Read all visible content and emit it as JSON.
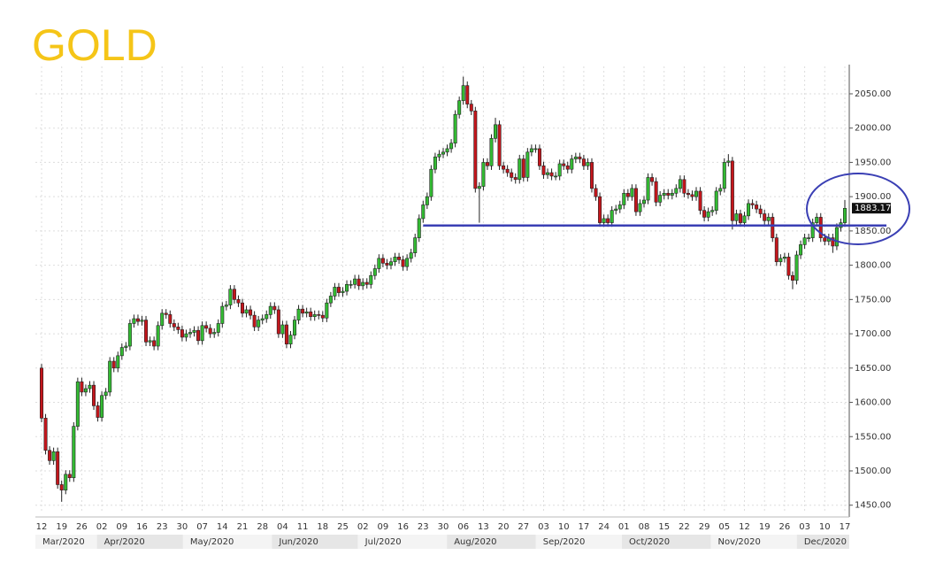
{
  "chart_data": {
    "type": "candlestick",
    "title": "GOLD",
    "categories": [
      "12",
      null,
      null,
      null,
      null,
      "19",
      null,
      null,
      null,
      null,
      "26",
      null,
      null,
      null,
      null,
      "02",
      null,
      null,
      null,
      null,
      "09",
      null,
      null,
      null,
      null,
      "16",
      null,
      null,
      null,
      null,
      "23",
      null,
      null,
      null,
      null,
      "30",
      null,
      null,
      null,
      null,
      "07",
      null,
      null,
      null,
      null,
      "14",
      null,
      null,
      null,
      null,
      "21",
      null,
      null,
      null,
      null,
      "28",
      null,
      null,
      null,
      null,
      "04",
      null,
      null,
      null,
      null,
      "11",
      null,
      null,
      null,
      null,
      "18",
      null,
      null,
      null,
      null,
      "25",
      null,
      null,
      null,
      null,
      "02",
      null,
      null,
      null,
      null,
      "09",
      null,
      null,
      null,
      null,
      "16",
      null,
      null,
      null,
      null,
      "23",
      null,
      null,
      null,
      null,
      "30",
      null,
      null,
      null,
      null,
      "06",
      null,
      null,
      null,
      null,
      "13",
      null,
      null,
      null,
      null,
      "20",
      null,
      null,
      null,
      null,
      "27",
      null,
      null,
      null,
      null,
      "03",
      null,
      null,
      null,
      null,
      "10",
      null,
      null,
      null,
      null,
      "17",
      null,
      null,
      null,
      null,
      "24",
      null,
      null,
      null,
      null,
      "01",
      null,
      null,
      null,
      null,
      "08",
      null,
      null,
      null,
      null,
      "15",
      null,
      null,
      null,
      null,
      "22",
      null,
      null,
      null,
      null,
      "29",
      null,
      null,
      null,
      null,
      "05",
      null,
      null,
      null,
      null,
      "12",
      null,
      null,
      null,
      null,
      "19",
      null,
      null,
      null,
      null,
      "26",
      null,
      null,
      null,
      null,
      "03",
      null,
      null,
      null,
      null,
      "10",
      null,
      null,
      null,
      null,
      "17"
    ],
    "months": [
      "Mar/2020",
      "Apr/2020",
      "May/2020",
      "Jun/2020",
      "Jul/2020",
      "Aug/2020",
      "Sep/2020",
      "Oct/2020",
      "Nov/2020",
      "Dec/2020"
    ],
    "open": [
      1650,
      1577,
      1530,
      1515,
      1528,
      1480,
      1472,
      1495,
      1490,
      1565,
      1630,
      1615,
      1620,
      1625,
      1595,
      1578,
      1610,
      1615,
      1660,
      1650,
      1668,
      1680,
      1682,
      1715,
      1722,
      1718,
      1720,
      1688,
      1690,
      1682,
      1712,
      1730,
      1728,
      1715,
      1710,
      1706,
      1695,
      1700,
      1702,
      1705,
      1690,
      1712,
      1708,
      1700,
      1702,
      1715,
      1740,
      1742,
      1765,
      1750,
      1745,
      1730,
      1735,
      1727,
      1710,
      1720,
      1722,
      1728,
      1740,
      1735,
      1700,
      1713,
      1685,
      1698,
      1720,
      1736,
      1730,
      1732,
      1725,
      1728,
      1727,
      1723,
      1745,
      1755,
      1768,
      1760,
      1762,
      1772,
      1772,
      1780,
      1770,
      1775,
      1772,
      1785,
      1795,
      1810,
      1803,
      1800,
      1805,
      1812,
      1808,
      1798,
      1810,
      1818,
      1840,
      1868,
      1888,
      1900,
      1940,
      1958,
      1962,
      1965,
      1970,
      1978,
      2020,
      2040,
      2062,
      2035,
      2025,
      1912,
      1915,
      1950,
      1945,
      1985,
      2005,
      1945,
      1940,
      1935,
      1928,
      1925,
      1955,
      1928,
      1965,
      1970,
      1970,
      1945,
      1932,
      1935,
      1930,
      1930,
      1948,
      1945,
      1940,
      1955,
      1958,
      1955,
      1945,
      1950,
      1912,
      1900,
      1862,
      1868,
      1862,
      1880,
      1882,
      1888,
      1905,
      1900,
      1912,
      1878,
      1890,
      1895,
      1928,
      1922,
      1892,
      1902,
      1905,
      1902,
      1905,
      1912,
      1925,
      1905,
      1903,
      1900,
      1908,
      1880,
      1870,
      1878,
      1880,
      1908,
      1912,
      1950,
      1952,
      1865,
      1875,
      1862,
      1872,
      1890,
      1888,
      1882,
      1875,
      1865,
      1870,
      1840,
      1805,
      1810,
      1812,
      1785,
      1778,
      1815,
      1830,
      1840,
      1840,
      1862,
      1870,
      1840,
      1835,
      1840,
      1828,
      1855,
      1862
    ],
    "high": [
      1656,
      1583,
      1536,
      1534,
      1534,
      1486,
      1501,
      1501,
      1571,
      1636,
      1636,
      1626,
      1631,
      1631,
      1601,
      1616,
      1621,
      1666,
      1666,
      1674,
      1686,
      1688,
      1721,
      1728,
      1728,
      1726,
      1726,
      1696,
      1696,
      1718,
      1736,
      1736,
      1734,
      1721,
      1716,
      1712,
      1706,
      1708,
      1711,
      1711,
      1718,
      1718,
      1714,
      1708,
      1721,
      1746,
      1748,
      1771,
      1771,
      1756,
      1751,
      1741,
      1741,
      1733,
      1726,
      1728,
      1734,
      1746,
      1746,
      1741,
      1719,
      1719,
      1704,
      1726,
      1742,
      1742,
      1738,
      1738,
      1734,
      1734,
      1733,
      1751,
      1761,
      1774,
      1774,
      1768,
      1778,
      1778,
      1786,
      1786,
      1781,
      1781,
      1791,
      1801,
      1816,
      1816,
      1809,
      1811,
      1818,
      1818,
      1814,
      1816,
      1824,
      1846,
      1874,
      1894,
      1906,
      1946,
      1964,
      1968,
      1971,
      1976,
      1984,
      2026,
      2046,
      2075,
      2068,
      2041,
      2031,
      1921,
      1956,
      1956,
      1991,
      2015,
      2011,
      1951,
      1946,
      1941,
      1934,
      1961,
      1961,
      1971,
      1976,
      1976,
      1976,
      1951,
      1941,
      1941,
      1936,
      1954,
      1954,
      1951,
      1961,
      1964,
      1964,
      1961,
      1956,
      1956,
      1918,
      1906,
      1874,
      1874,
      1886,
      1888,
      1894,
      1911,
      1911,
      1918,
      1918,
      1896,
      1901,
      1934,
      1934,
      1928,
      1908,
      1911,
      1911,
      1911,
      1918,
      1931,
      1931,
      1911,
      1909,
      1914,
      1914,
      1886,
      1884,
      1886,
      1914,
      1918,
      1956,
      1962,
      1958,
      1881,
      1881,
      1878,
      1896,
      1896,
      1894,
      1888,
      1881,
      1876,
      1876,
      1846,
      1816,
      1818,
      1818,
      1791,
      1821,
      1836,
      1846,
      1846,
      1868,
      1876,
      1876,
      1846,
      1846,
      1846,
      1861,
      1868,
      1895
    ],
    "low": [
      1571,
      1524,
      1509,
      1509,
      1474,
      1455,
      1466,
      1484,
      1484,
      1559,
      1609,
      1609,
      1614,
      1589,
      1572,
      1572,
      1604,
      1609,
      1644,
      1644,
      1662,
      1674,
      1676,
      1709,
      1712,
      1712,
      1682,
      1682,
      1676,
      1676,
      1706,
      1722,
      1709,
      1704,
      1700,
      1689,
      1689,
      1694,
      1696,
      1684,
      1684,
      1702,
      1694,
      1694,
      1696,
      1709,
      1734,
      1736,
      1744,
      1739,
      1724,
      1724,
      1721,
      1704,
      1704,
      1714,
      1716,
      1722,
      1729,
      1694,
      1694,
      1679,
      1679,
      1692,
      1714,
      1724,
      1724,
      1719,
      1719,
      1721,
      1717,
      1717,
      1739,
      1749,
      1754,
      1754,
      1756,
      1766,
      1766,
      1764,
      1764,
      1766,
      1766,
      1779,
      1789,
      1797,
      1794,
      1794,
      1799,
      1802,
      1792,
      1792,
      1804,
      1812,
      1834,
      1862,
      1882,
      1894,
      1934,
      1952,
      1956,
      1959,
      1964,
      1972,
      2014,
      2034,
      2029,
      2019,
      1906,
      1862,
      1909,
      1939,
      1939,
      1979,
      1939,
      1934,
      1929,
      1922,
      1919,
      1919,
      1922,
      1922,
      1959,
      1964,
      1939,
      1926,
      1926,
      1924,
      1924,
      1924,
      1939,
      1934,
      1934,
      1949,
      1949,
      1939,
      1939,
      1906,
      1894,
      1856,
      1856,
      1856,
      1856,
      1874,
      1876,
      1882,
      1894,
      1894,
      1872,
      1872,
      1884,
      1889,
      1916,
      1886,
      1886,
      1896,
      1896,
      1896,
      1899,
      1906,
      1899,
      1897,
      1894,
      1894,
      1874,
      1864,
      1864,
      1872,
      1874,
      1902,
      1906,
      1944,
      1852,
      1859,
      1856,
      1856,
      1866,
      1882,
      1876,
      1869,
      1859,
      1859,
      1834,
      1799,
      1799,
      1804,
      1779,
      1765,
      1772,
      1809,
      1824,
      1834,
      1834,
      1856,
      1834,
      1829,
      1829,
      1818,
      1822,
      1849,
      1856
    ],
    "close": [
      1577,
      1530,
      1515,
      1528,
      1480,
      1472,
      1495,
      1490,
      1565,
      1630,
      1615,
      1620,
      1625,
      1595,
      1578,
      1610,
      1615,
      1660,
      1650,
      1668,
      1680,
      1682,
      1715,
      1722,
      1718,
      1720,
      1688,
      1690,
      1682,
      1712,
      1730,
      1728,
      1715,
      1710,
      1706,
      1695,
      1700,
      1702,
      1705,
      1690,
      1712,
      1708,
      1700,
      1702,
      1715,
      1740,
      1742,
      1765,
      1750,
      1745,
      1730,
      1735,
      1727,
      1710,
      1720,
      1722,
      1728,
      1740,
      1735,
      1700,
      1713,
      1685,
      1698,
      1720,
      1736,
      1730,
      1732,
      1725,
      1728,
      1727,
      1723,
      1745,
      1755,
      1768,
      1760,
      1762,
      1772,
      1772,
      1780,
      1770,
      1775,
      1772,
      1785,
      1795,
      1810,
      1803,
      1800,
      1805,
      1812,
      1808,
      1798,
      1810,
      1818,
      1840,
      1868,
      1888,
      1900,
      1940,
      1958,
      1962,
      1965,
      1970,
      1978,
      2020,
      2040,
      2062,
      2035,
      2025,
      1912,
      1915,
      1950,
      1945,
      1985,
      2005,
      1945,
      1940,
      1935,
      1928,
      1925,
      1955,
      1928,
      1965,
      1970,
      1970,
      1945,
      1932,
      1935,
      1930,
      1930,
      1948,
      1945,
      1940,
      1955,
      1958,
      1955,
      1945,
      1950,
      1912,
      1900,
      1862,
      1868,
      1862,
      1880,
      1882,
      1888,
      1905,
      1900,
      1912,
      1878,
      1890,
      1895,
      1928,
      1922,
      1892,
      1902,
      1905,
      1902,
      1905,
      1912,
      1925,
      1905,
      1903,
      1900,
      1908,
      1880,
      1870,
      1878,
      1880,
      1908,
      1912,
      1950,
      1952,
      1865,
      1875,
      1862,
      1872,
      1890,
      1888,
      1882,
      1875,
      1865,
      1870,
      1840,
      1805,
      1810,
      1812,
      1785,
      1778,
      1815,
      1830,
      1840,
      1840,
      1862,
      1870,
      1840,
      1835,
      1840,
      1828,
      1855,
      1862,
      1883
    ],
    "up_color": "#33bb33",
    "down_color": "#c4161c",
    "last_price": 1883.17,
    "support_level": 1858,
    "support_color": "#3a3fb4",
    "ylim": [
      1438,
      2090
    ],
    "yticks": [
      {
        "value": 1450,
        "label": "1450.00"
      },
      {
        "value": 1500,
        "label": "1500.00"
      },
      {
        "value": 1550,
        "label": "1550.00"
      },
      {
        "value": 1600,
        "label": "1600.00"
      },
      {
        "value": 1650,
        "label": "1650.00"
      },
      {
        "value": 1700,
        "label": "1700.00"
      },
      {
        "value": 1750,
        "label": "1750.00"
      },
      {
        "value": 1800,
        "label": "1800.00"
      },
      {
        "value": 1850,
        "label": "1850.00"
      },
      {
        "value": 1900,
        "label": "1900.00"
      },
      {
        "value": 1950,
        "label": "1950.00"
      },
      {
        "value": 2000,
        "label": "2000.00"
      },
      {
        "value": 2050,
        "label": "2050.00"
      }
    ],
    "grid": true
  }
}
